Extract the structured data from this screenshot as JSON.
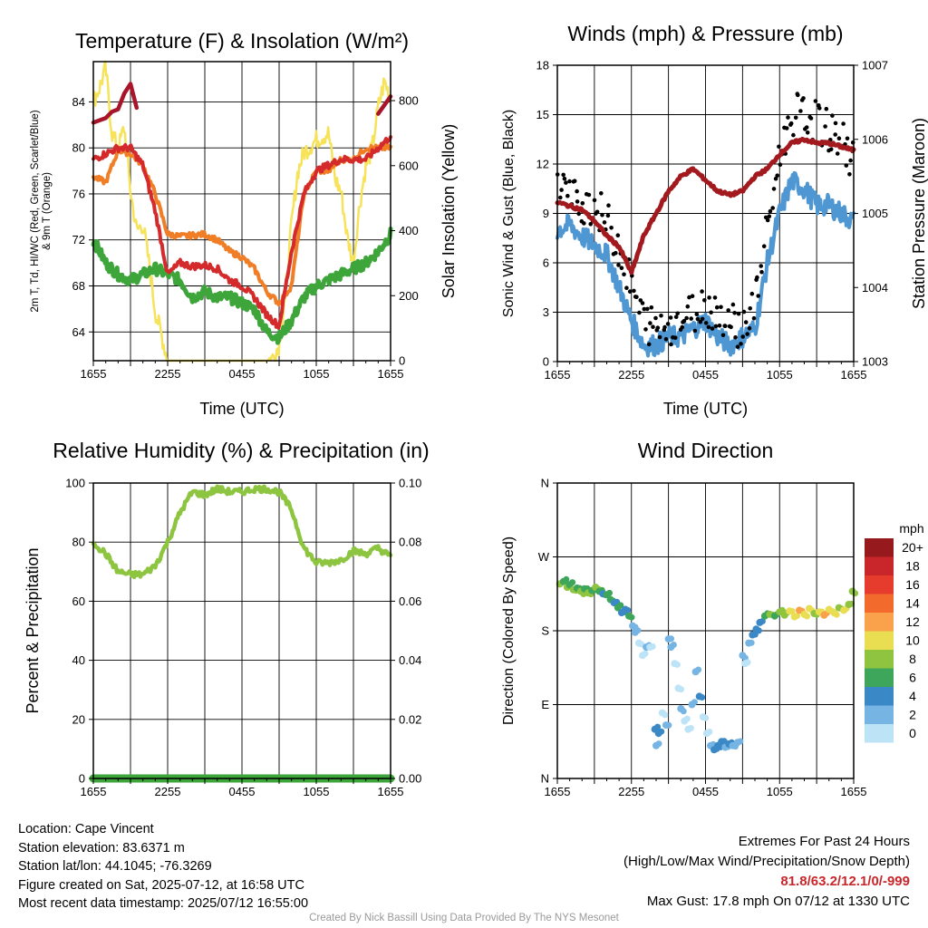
{
  "colors": {
    "temp": "#d42a2b",
    "heat_index": "#a8152a",
    "dewpoint": "#3da53a",
    "t9m": "#f07e26",
    "insolation": "#f6e35a",
    "wind": "#4f97d3",
    "gust": "#000000",
    "pressure": "#a21a1e",
    "rh": "#8dc540",
    "precip": "#3da53a"
  },
  "chart_data": [
    {
      "id": "temperature",
      "type": "line",
      "title": "Temperature (F) & Insolation (W/m²)",
      "xlabel": "Time (UTC)",
      "ylabel": "2m T, Td, HI/WC (Red, Green, Scarlet/Blue) & 9m T (Orange)",
      "ylabel_lines": [
        "2m T, Td, HI/WC (Red, Green, Scarlet/Blue)",
        "& 9m T (Orange)"
      ],
      "y2label": "Solar Insolation (Yellow)",
      "x_ticks": [
        "1655",
        "2255",
        "0455",
        "1055",
        "1655"
      ],
      "x_range_hours": [
        0,
        24
      ],
      "ylim": [
        61.5,
        87.5
      ],
      "y_ticks": [
        "64",
        "68",
        "72",
        "76",
        "80",
        "84"
      ],
      "y2lim": [
        0,
        920
      ],
      "y2_ticks": [
        "0",
        "200",
        "400",
        "600",
        "800"
      ],
      "series": [
        {
          "name": "9m T (Orange)",
          "x": [
            0,
            1,
            2,
            3,
            4,
            5,
            6,
            7,
            8,
            9,
            10,
            11,
            12,
            13,
            14,
            15,
            16,
            17,
            18,
            19,
            20,
            21,
            22,
            23,
            24
          ],
          "values": [
            77.5,
            77,
            79.8,
            79.5,
            78.5,
            76,
            72.5,
            72.3,
            72.4,
            72.5,
            72,
            71,
            70.5,
            69.5,
            67.5,
            66.5,
            68,
            76,
            78,
            78,
            79,
            79,
            80,
            80,
            80
          ]
        },
        {
          "name": "2m T (Red)",
          "x": [
            0,
            1,
            2,
            3,
            4,
            5,
            6,
            7,
            8,
            9,
            10,
            11,
            12,
            13,
            14,
            15,
            16,
            17,
            18,
            19,
            20,
            21,
            22,
            23,
            24
          ],
          "values": [
            79,
            79.5,
            80,
            80,
            78.5,
            74.5,
            69,
            70,
            69.7,
            69.8,
            69.5,
            68.5,
            68,
            67,
            65.5,
            64.5,
            71,
            76,
            78,
            78.5,
            79,
            79,
            79,
            80,
            81
          ]
        },
        {
          "name": "Dewpoint (Green)",
          "x": [
            0,
            1,
            2,
            3,
            4,
            5,
            6,
            7,
            8,
            9,
            10,
            11,
            12,
            13,
            14,
            15,
            16,
            17,
            18,
            19,
            20,
            21,
            22,
            23,
            24
          ],
          "values": [
            72,
            70,
            69,
            68.5,
            69,
            69.5,
            69,
            68.5,
            67,
            67.5,
            67,
            67,
            66.5,
            66,
            64,
            63.5,
            65,
            67,
            68,
            68.5,
            69,
            69.5,
            70,
            71,
            72.5
          ]
        },
        {
          "name": "Heat Index (Scarlet)",
          "x": [
            0,
            1,
            1.5,
            2,
            2.5,
            3,
            3.5,
            22,
            23,
            24
          ],
          "values": [
            82,
            82.5,
            83,
            83.5,
            84.5,
            85.5,
            83.5,
            82.5,
            83,
            84.5
          ]
        },
        {
          "name": "Solar Insolation (Yellow)",
          "x": [
            0,
            0.5,
            1,
            1.5,
            2,
            2.5,
            3,
            3.5,
            4,
            4.5,
            5,
            5.5,
            6,
            7,
            8,
            9,
            10,
            11,
            12,
            13,
            13.5,
            14,
            14.5,
            15,
            15.5,
            16,
            16.5,
            17,
            17.5,
            18,
            18.5,
            19,
            19.5,
            20,
            20.5,
            21,
            21.5,
            22,
            22.5,
            23,
            23.5,
            24
          ],
          "values": [
            800,
            840,
            900,
            700,
            650,
            720,
            520,
            400,
            420,
            300,
            150,
            80,
            0,
            0,
            0,
            0,
            0,
            0,
            0,
            0,
            0,
            0,
            10,
            50,
            200,
            420,
            580,
            640,
            660,
            680,
            690,
            700,
            560,
            520,
            380,
            300,
            480,
            600,
            650,
            780,
            860,
            810
          ]
        }
      ]
    },
    {
      "id": "winds",
      "type": "line",
      "title": "Winds (mph) & Pressure (mb)",
      "xlabel": "Time (UTC)",
      "ylabel": "Sonic Wind & Gust (Blue, Black)",
      "y2label": "Station Pressure (Maroon)",
      "x_ticks": [
        "1655",
        "2255",
        "0455",
        "1055",
        "1655"
      ],
      "x_range_hours": [
        0,
        24
      ],
      "ylim": [
        0,
        18
      ],
      "y_ticks": [
        "0",
        "3",
        "6",
        "9",
        "12",
        "15",
        "18"
      ],
      "y2lim": [
        1003,
        1007
      ],
      "y2_ticks": [
        "1003",
        "1004",
        "1005",
        "1006",
        "1007"
      ],
      "series": [
        {
          "name": "Sonic Wind (Blue)",
          "x": [
            0,
            1,
            2,
            3,
            4,
            5,
            6,
            7,
            8,
            9,
            10,
            11,
            12,
            13,
            14,
            15,
            16,
            17,
            18,
            19,
            20,
            21,
            22,
            23,
            24
          ],
          "values": [
            8,
            8.3,
            7.6,
            7.1,
            6.5,
            4.5,
            2.5,
            1,
            1,
            1.5,
            1.5,
            2,
            2.5,
            1.5,
            1,
            1.5,
            2,
            6,
            9,
            11,
            10.5,
            9.5,
            9.5,
            9,
            8.5
          ]
        },
        {
          "name": "Gust (Black)",
          "x": [
            0,
            1,
            2,
            3,
            4,
            5,
            6,
            7,
            8,
            9,
            10,
            11,
            12,
            13,
            14,
            15,
            16,
            17,
            18,
            19,
            20,
            21,
            22,
            23,
            24
          ],
          "values": [
            11.5,
            10,
            9.7,
            9.5,
            8.5,
            7,
            4.5,
            2.5,
            2,
            2.3,
            2.5,
            3,
            3.5,
            3,
            2.5,
            2,
            3.5,
            8,
            12.5,
            15,
            15,
            14.5,
            14,
            13.5,
            12
          ]
        },
        {
          "name": "Station Pressure (Maroon)",
          "x": [
            0,
            1,
            2,
            3,
            4,
            5,
            6,
            7,
            8,
            9,
            10,
            11,
            12,
            13,
            14,
            15,
            16,
            17,
            18,
            19,
            20,
            21,
            22,
            23,
            24
          ],
          "values": [
            1005.15,
            1005.1,
            1005.05,
            1004.9,
            1004.7,
            1004.55,
            1004.2,
            1004.7,
            1005,
            1005.3,
            1005.5,
            1005.6,
            1005.45,
            1005.3,
            1005.25,
            1005.3,
            1005.5,
            1005.6,
            1005.8,
            1005.95,
            1006,
            1005.95,
            1005.95,
            1005.9,
            1005.85
          ]
        }
      ]
    },
    {
      "id": "humidity",
      "type": "line",
      "title": "Relative Humidity (%) & Precipitation (in)",
      "xlabel": "",
      "ylabel": "Percent & Precipitation",
      "x_ticks": [
        "1655",
        "2255",
        "0455",
        "1055",
        "1655"
      ],
      "x_range_hours": [
        0,
        24
      ],
      "ylim": [
        0,
        100
      ],
      "y_ticks": [
        "0",
        "20",
        "40",
        "60",
        "80",
        "100"
      ],
      "y2lim": [
        0,
        0.1
      ],
      "y2_ticks": [
        "0.00",
        "0.02",
        "0.04",
        "0.06",
        "0.08",
        "0.10"
      ],
      "series": [
        {
          "name": "Relative Humidity",
          "x": [
            0,
            1,
            2,
            3,
            4,
            5,
            6,
            7,
            8,
            9,
            10,
            11,
            12,
            13,
            14,
            15,
            16,
            17,
            18,
            19,
            20,
            21,
            22,
            23,
            24
          ],
          "values": [
            80,
            76,
            70,
            69,
            69,
            72,
            80,
            90,
            97,
            96,
            98,
            97,
            97,
            98,
            98,
            97,
            91,
            78,
            73,
            73,
            74,
            77,
            76,
            78,
            75
          ]
        },
        {
          "name": "Precipitation",
          "x": [
            0,
            24
          ],
          "values": [
            0,
            0
          ]
        }
      ]
    },
    {
      "id": "wind_direction",
      "type": "scatter",
      "title": "Wind Direction",
      "xlabel": "",
      "ylabel": "Direction (Colored By Speed)",
      "x_ticks": [
        "1655",
        "2255",
        "0455",
        "1055",
        "1655"
      ],
      "x_range_hours": [
        0,
        24
      ],
      "ylim": [
        0,
        360
      ],
      "y_ticks": [
        "N",
        "E",
        "S",
        "W",
        "N"
      ],
      "legend": {
        "title": "mph",
        "placement": "right",
        "labels": [
          "20+",
          "18",
          "16",
          "14",
          "12",
          "10",
          "8",
          "6",
          "4",
          "2",
          "0"
        ],
        "colors": [
          "#961a1d",
          "#c8262b",
          "#e53c2e",
          "#f26b2d",
          "#f9a14b",
          "#e9dd52",
          "#8fc440",
          "#3ea65a",
          "#3b88c6",
          "#76b5e3",
          "#bde3f7"
        ]
      },
      "points": [
        [
          0.2,
          237,
          "#8fc440"
        ],
        [
          0.5,
          240,
          "#3ea65a"
        ],
        [
          0.8,
          233,
          "#8fc440"
        ],
        [
          1.0,
          236,
          "#3ea65a"
        ],
        [
          1.3,
          230,
          "#8fc440"
        ],
        [
          1.6,
          232,
          "#3ea65a"
        ],
        [
          1.9,
          228,
          "#8fc440"
        ],
        [
          2.2,
          231,
          "#3ea65a"
        ],
        [
          2.5,
          226,
          "#8fc440"
        ],
        [
          2.8,
          229,
          "#3ea65a"
        ],
        [
          3.1,
          233,
          "#8fc440"
        ],
        [
          3.4,
          228,
          "#3ea65a"
        ],
        [
          3.7,
          225,
          "#3b88c6"
        ],
        [
          4.0,
          224,
          "#3ea65a"
        ],
        [
          4.3,
          218,
          "#3ea65a"
        ],
        [
          4.6,
          214,
          "#3b88c6"
        ],
        [
          4.9,
          208,
          "#3ea65a"
        ],
        [
          5.2,
          202,
          "#3b88c6"
        ],
        [
          5.5,
          206,
          "#3b88c6"
        ],
        [
          5.8,
          198,
          "#3ea65a"
        ],
        [
          6.1,
          186,
          "#76b5e3"
        ],
        [
          6.3,
          178,
          "#76b5e3"
        ],
        [
          6.6,
          165,
          "#bde3f7"
        ],
        [
          6.9,
          150,
          "#bde3f7"
        ],
        [
          7.2,
          160,
          "#76b5e3"
        ],
        [
          7.5,
          160,
          "#bde3f7"
        ],
        [
          7.9,
          60,
          "#3b88c6"
        ],
        [
          8.0,
          40,
          "#76b5e3"
        ],
        [
          8.2,
          55,
          "#3b88c6"
        ],
        [
          8.5,
          80,
          "#bde3f7"
        ],
        [
          8.8,
          65,
          "#76b5e3"
        ],
        [
          9.0,
          170,
          "#76b5e3"
        ],
        [
          9.2,
          160,
          "#76b5e3"
        ],
        [
          9.5,
          140,
          "#bde3f7"
        ],
        [
          9.8,
          110,
          "#bde3f7"
        ],
        [
          10.0,
          85,
          "#76b5e3"
        ],
        [
          10.3,
          70,
          "#bde3f7"
        ],
        [
          10.6,
          60,
          "#bde3f7"
        ],
        [
          10.9,
          90,
          "#76b5e3"
        ],
        [
          11.2,
          130,
          "#76b5e3"
        ],
        [
          11.5,
          100,
          "#3b88c6"
        ],
        [
          11.8,
          75,
          "#bde3f7"
        ],
        [
          12.1,
          55,
          "#bde3f7"
        ],
        [
          12.4,
          40,
          "#76b5e3"
        ],
        [
          12.7,
          35,
          "#3b88c6"
        ],
        [
          13.0,
          40,
          "#3b88c6"
        ],
        [
          13.3,
          45,
          "#3b88c6"
        ],
        [
          13.6,
          38,
          "#76b5e3"
        ],
        [
          13.9,
          42,
          "#3b88c6"
        ],
        [
          14.2,
          40,
          "#76b5e3"
        ],
        [
          14.6,
          44,
          "#76b5e3"
        ],
        [
          15.0,
          150,
          "#76b5e3"
        ],
        [
          15.2,
          140,
          "#bde3f7"
        ],
        [
          15.5,
          165,
          "#76b5e3"
        ],
        [
          15.8,
          175,
          "#3b88c6"
        ],
        [
          16.1,
          182,
          "#3b88c6"
        ],
        [
          16.4,
          190,
          "#3b88c6"
        ],
        [
          16.8,
          198,
          "#3ea65a"
        ],
        [
          17.2,
          200,
          "#8fc440"
        ],
        [
          17.6,
          198,
          "#3ea65a"
        ],
        [
          18.0,
          203,
          "#8fc440"
        ],
        [
          18.4,
          199,
          "#8fc440"
        ],
        [
          18.8,
          204,
          "#e9dd52"
        ],
        [
          19.2,
          197,
          "#e9dd52"
        ],
        [
          19.6,
          205,
          "#f9a14b"
        ],
        [
          20.0,
          200,
          "#e9dd52"
        ],
        [
          20.4,
          207,
          "#e9dd52"
        ],
        [
          20.8,
          201,
          "#8fc440"
        ],
        [
          21.2,
          203,
          "#e9dd52"
        ],
        [
          21.6,
          199,
          "#f9a14b"
        ],
        [
          22.0,
          206,
          "#e9dd52"
        ],
        [
          22.4,
          202,
          "#e9dd52"
        ],
        [
          22.8,
          208,
          "#8fc440"
        ],
        [
          23.2,
          205,
          "#e9dd52"
        ],
        [
          23.6,
          212,
          "#8fc440"
        ],
        [
          23.9,
          228,
          "#8fc440"
        ]
      ]
    }
  ],
  "info": {
    "location": "Location: Cape Vincent",
    "elevation": "Station elevation: 83.6371 m",
    "latlon": "Station lat/lon: 44.1045; -76.3269",
    "created": "Figure created on Sat, 2025-07-12, at 16:58 UTC",
    "recent": "Most recent data timestamp: 2025/07/12 16:55:00"
  },
  "extremes": {
    "title": "Extremes For Past 24 Hours",
    "subtitle": "(High/Low/Max Wind/Precipitation/Snow Depth)",
    "values": "81.8/63.2/12.1/0/-999",
    "max_gust": "Max Gust: 17.8 mph On 07/12 at 1330 UTC"
  },
  "credit": "Created By Nick Bassill Using Data Provided By The NYS Mesonet"
}
